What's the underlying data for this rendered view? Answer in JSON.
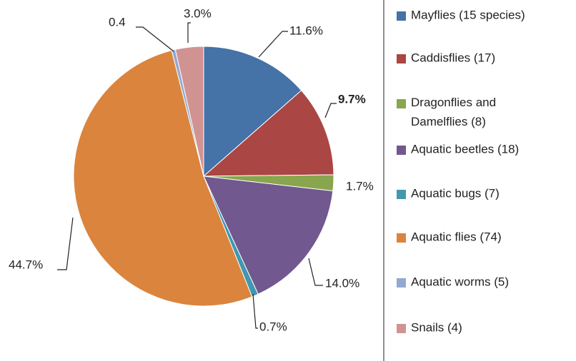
{
  "chart_data": {
    "type": "pie",
    "categories": [
      "Mayflies (15 species)",
      "Caddisflies (17)",
      "Dragonflies and Damelflies (8)",
      "Aquatic beetles (18)",
      "Aquatic bugs (7)",
      "Aquatic flies (74)",
      "Aquatic worms (5)",
      "Snails (4)"
    ],
    "values": [
      11.6,
      9.7,
      1.7,
      14.0,
      0.7,
      44.7,
      0.4,
      3.0
    ],
    "value_labels": [
      "11.6%",
      "9.7%",
      "1.7%",
      "14.0%",
      "0.7%",
      "44.7%",
      "0.4",
      "3.0%"
    ],
    "colors": [
      "#4572a7",
      "#aa4643",
      "#89a54e",
      "#71588f",
      "#4198af",
      "#db843d",
      "#93a9cf",
      "#d19392"
    ],
    "legend": "right"
  }
}
